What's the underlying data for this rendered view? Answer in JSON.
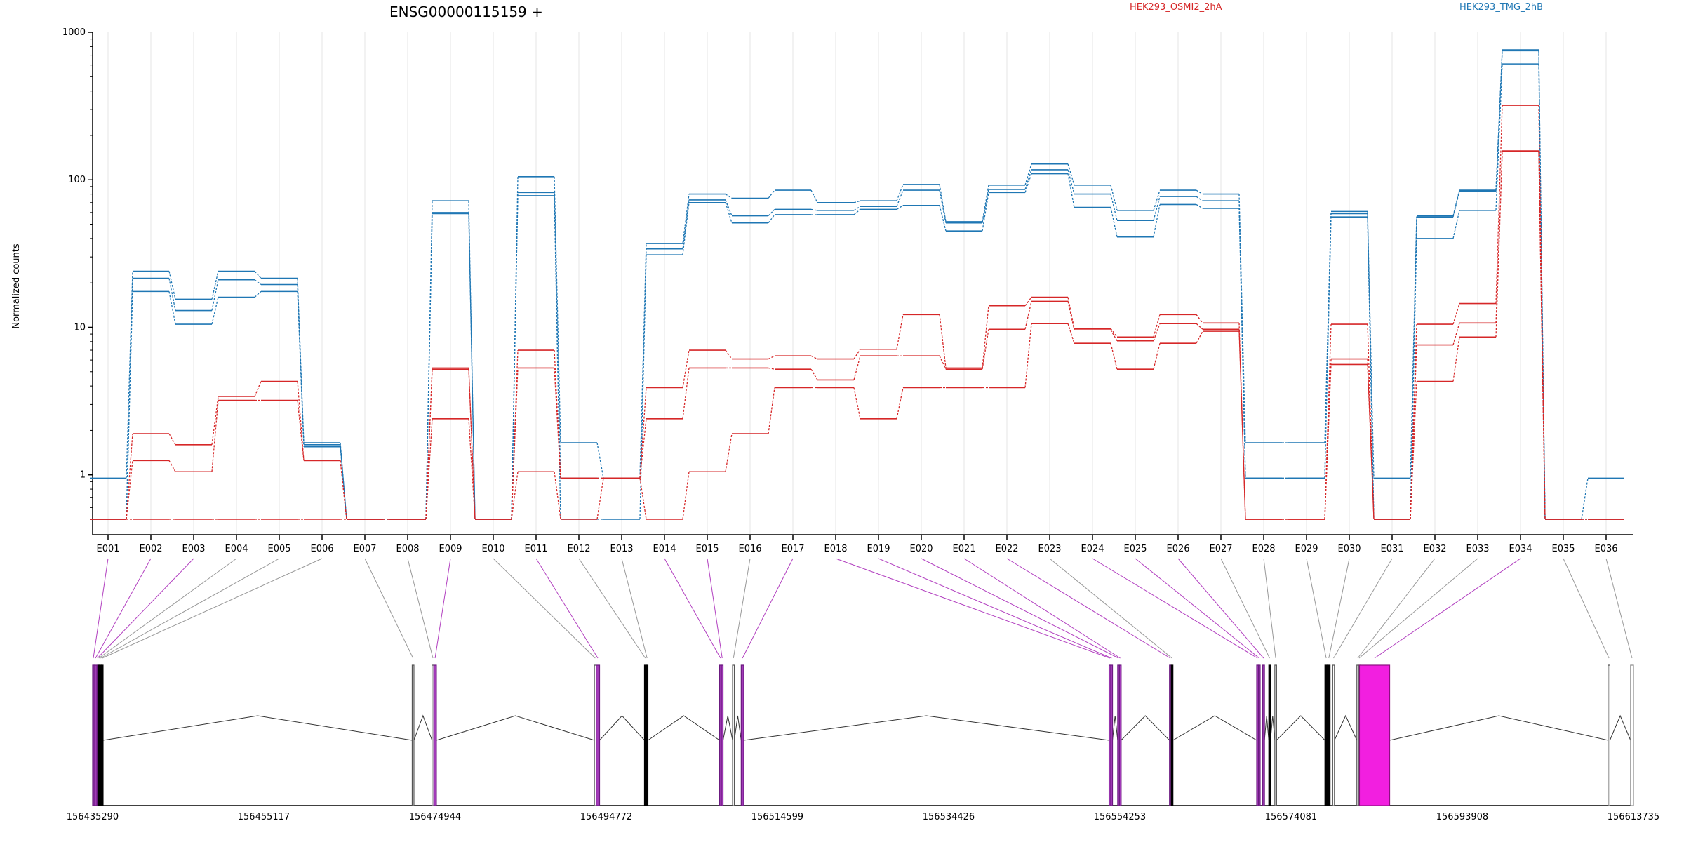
{
  "title": "ENSG00000115159 +",
  "legend": {
    "items": [
      {
        "name": "HEK293_OSMI2_2hA",
        "color": "#d62728"
      },
      {
        "name": "HEK293_TMG_2hB",
        "color": "#1f77b4"
      }
    ]
  },
  "gene_track": {
    "coordinates": [
      "156435290",
      "156455117",
      "156474944",
      "156494772",
      "156514599",
      "156534426",
      "156554253",
      "156574081",
      "156593908",
      "156613735"
    ],
    "range": [
      156435290,
      156613735
    ],
    "exon_color": "#f21fe0",
    "highlight_color": "#a23ab8",
    "exons": [
      {
        "id": "E001",
        "start": 156435290,
        "end": 156435450,
        "kind": "hl"
      },
      {
        "id": "E002",
        "start": 156435450,
        "end": 156435800,
        "kind": "hl"
      },
      {
        "id": "E003",
        "start": 156435800,
        "end": 156435900,
        "kind": "hl"
      },
      {
        "id": "E004",
        "start": 156435900,
        "end": 156436100,
        "kind": "dark"
      },
      {
        "id": "E005",
        "start": 156436100,
        "end": 156436300,
        "kind": "dark"
      },
      {
        "id": "E006",
        "start": 156436300,
        "end": 156436500,
        "kind": "dark"
      },
      {
        "id": "E007",
        "start": 156472300,
        "end": 156472500,
        "kind": "plain"
      },
      {
        "id": "E008",
        "start": 156474600,
        "end": 156474800,
        "kind": "plain"
      },
      {
        "id": "E009",
        "start": 156474800,
        "end": 156475100,
        "kind": "hl"
      },
      {
        "id": "E010",
        "start": 156493400,
        "end": 156493600,
        "kind": "plain"
      },
      {
        "id": "E011",
        "start": 156493600,
        "end": 156494000,
        "kind": "hl"
      },
      {
        "id": "E012",
        "start": 156499200,
        "end": 156499400,
        "kind": "dark"
      },
      {
        "id": "E013",
        "start": 156499400,
        "end": 156499600,
        "kind": "dark"
      },
      {
        "id": "E014",
        "start": 156507900,
        "end": 156508100,
        "kind": "hl"
      },
      {
        "id": "E015",
        "start": 156508100,
        "end": 156508300,
        "kind": "hl"
      },
      {
        "id": "E016",
        "start": 156509400,
        "end": 156509600,
        "kind": "plain"
      },
      {
        "id": "E017",
        "start": 156510400,
        "end": 156510700,
        "kind": "hl"
      },
      {
        "id": "E018",
        "start": 156553000,
        "end": 156553200,
        "kind": "hl"
      },
      {
        "id": "E019",
        "start": 156553200,
        "end": 156553400,
        "kind": "hl"
      },
      {
        "id": "E020",
        "start": 156554000,
        "end": 156554200,
        "kind": "hl"
      },
      {
        "id": "E021",
        "start": 156554200,
        "end": 156554400,
        "kind": "hl"
      },
      {
        "id": "E022",
        "start": 156560000,
        "end": 156560200,
        "kind": "hl"
      },
      {
        "id": "E023",
        "start": 156560200,
        "end": 156560400,
        "kind": "dark"
      },
      {
        "id": "E024",
        "start": 156570100,
        "end": 156570300,
        "kind": "hl"
      },
      {
        "id": "E025",
        "start": 156570300,
        "end": 156570500,
        "kind": "hl"
      },
      {
        "id": "E026",
        "start": 156570800,
        "end": 156571000,
        "kind": "hl"
      },
      {
        "id": "E027",
        "start": 156571500,
        "end": 156571700,
        "kind": "dark"
      },
      {
        "id": "E028",
        "start": 156572200,
        "end": 156572400,
        "kind": "plain"
      },
      {
        "id": "E029",
        "start": 156578000,
        "end": 156578300,
        "kind": "dark"
      },
      {
        "id": "E030",
        "start": 156578300,
        "end": 156578600,
        "kind": "dark"
      },
      {
        "id": "E031",
        "start": 156578900,
        "end": 156579100,
        "kind": "plain"
      },
      {
        "id": "E032",
        "start": 156581700,
        "end": 156581900,
        "kind": "plain"
      },
      {
        "id": "E033",
        "start": 156581900,
        "end": 156582000,
        "kind": "plain"
      },
      {
        "id": "E034",
        "start": 156582000,
        "end": 156585500,
        "kind": "block"
      },
      {
        "id": "E035",
        "start": 156610800,
        "end": 156611000,
        "kind": "plain"
      },
      {
        "id": "E036",
        "start": 156613400,
        "end": 156613735,
        "kind": "open"
      }
    ]
  },
  "chart_data": {
    "type": "line",
    "title": "ENSG00000115159 +",
    "xlabel": "",
    "ylabel": "Normalized counts",
    "yscale": "log",
    "ylim": [
      0.5,
      1000
    ],
    "yticks": [
      {
        "value": 1,
        "label": "1"
      },
      {
        "value": 10,
        "label": "10"
      },
      {
        "value": 100,
        "label": "100"
      },
      {
        "value": 1000,
        "label": "1000"
      }
    ],
    "categories": [
      "E001",
      "E002",
      "E003",
      "E004",
      "E005",
      "E006",
      "E007",
      "E008",
      "E009",
      "E010",
      "E011",
      "E012",
      "E013",
      "E014",
      "E015",
      "E016",
      "E017",
      "E018",
      "E019",
      "E020",
      "E021",
      "E022",
      "E023",
      "E024",
      "E025",
      "E026",
      "E027",
      "E028",
      "E029",
      "E030",
      "E031",
      "E032",
      "E033",
      "E034",
      "E035",
      "E036"
    ],
    "legend_position": "top",
    "grid": "vertical",
    "series": [
      {
        "group": "HEK293_TMG_2hB",
        "color": "#1f77b4",
        "values": [
          0.95,
          24,
          15.5,
          24,
          21.5,
          1.65,
          0.5,
          0.5,
          72,
          0.5,
          105,
          1.65,
          0.95,
          37,
          80,
          75,
          85,
          70,
          72,
          93,
          52,
          92,
          128,
          92,
          62,
          85,
          80,
          1.65,
          1.65,
          61,
          0.95,
          57,
          85,
          760,
          0.5,
          0.95
        ]
      },
      {
        "group": "HEK293_TMG_2hB",
        "color": "#1f77b4",
        "values": [
          0.5,
          21.5,
          13,
          21,
          19.5,
          1.6,
          0.5,
          0.5,
          60,
          0.5,
          82,
          0.95,
          0.95,
          34,
          73,
          57,
          63,
          62,
          66,
          85,
          51,
          86,
          117,
          80,
          53,
          77,
          72,
          0.95,
          0.95,
          59,
          0.5,
          56,
          84,
          750,
          0.5,
          0.5
        ]
      },
      {
        "group": "HEK293_TMG_2hB",
        "color": "#1f77b4",
        "values": [
          0.5,
          17.5,
          10.5,
          16,
          17.5,
          1.55,
          0.5,
          0.5,
          59,
          0.5,
          78,
          0.5,
          0.5,
          31,
          70,
          51,
          58,
          58,
          63,
          67,
          45,
          82,
          110,
          65,
          41,
          68,
          64,
          0.95,
          0.95,
          56,
          0.5,
          40,
          62,
          610,
          0.5,
          0.5
        ]
      },
      {
        "group": "HEK293_OSMI2_2hA",
        "color": "#d62728",
        "values": [
          0.5,
          1.9,
          1.6,
          3.4,
          4.3,
          1.25,
          0.5,
          0.5,
          5.3,
          0.5,
          7,
          0.95,
          0.95,
          3.9,
          7,
          6.1,
          6.4,
          6.1,
          7.1,
          12.2,
          5.3,
          14,
          16,
          9.8,
          8.6,
          12.2,
          10.7,
          0.5,
          0.5,
          10.5,
          0.5,
          10.5,
          14.5,
          320,
          0.5,
          0.5
        ]
      },
      {
        "group": "HEK293_OSMI2_2hA",
        "color": "#d62728",
        "values": [
          0.5,
          1.25,
          1.05,
          3.2,
          3.2,
          1.25,
          0.5,
          0.5,
          5.2,
          0.5,
          5.3,
          0.95,
          0.95,
          2.4,
          5.3,
          5.3,
          5.2,
          4.4,
          6.4,
          6.4,
          5.2,
          9.7,
          15,
          9.6,
          8.1,
          10.6,
          9.7,
          0.5,
          0.5,
          6.1,
          0.5,
          7.6,
          10.7,
          157,
          0.5,
          0.5
        ]
      },
      {
        "group": "HEK293_OSMI2_2hA",
        "color": "#d62728",
        "values": [
          0.5,
          0.5,
          0.5,
          0.5,
          0.5,
          0.5,
          0.5,
          0.5,
          2.4,
          0.5,
          1.05,
          0.5,
          0.95,
          0.5,
          1.05,
          1.9,
          3.9,
          3.9,
          2.4,
          3.9,
          3.9,
          3.9,
          10.6,
          7.8,
          5.2,
          7.8,
          9.4,
          0.5,
          0.5,
          5.6,
          0.5,
          4.3,
          8.6,
          155,
          0.5,
          0.5
        ]
      }
    ]
  }
}
